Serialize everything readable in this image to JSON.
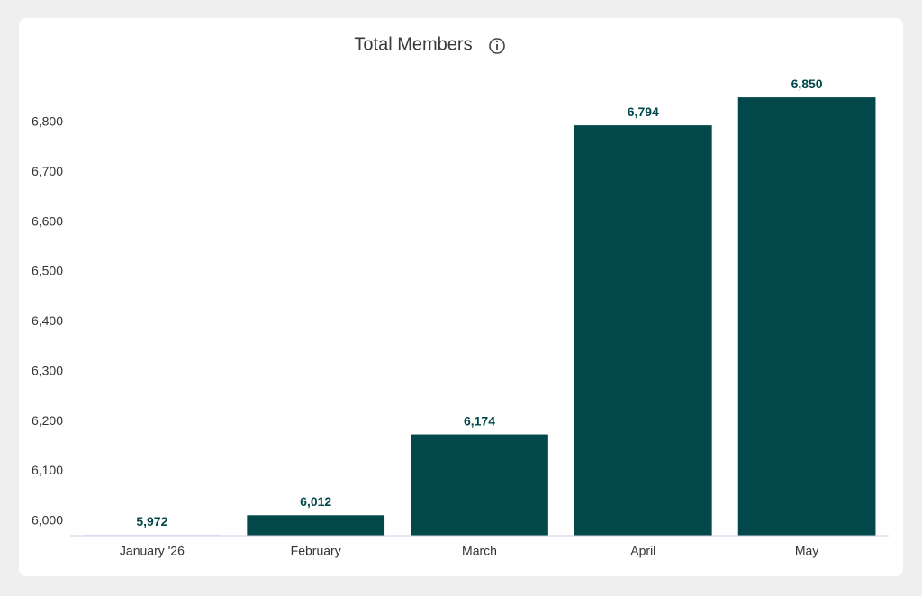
{
  "chart_data": {
    "type": "bar",
    "title": "Total Members",
    "categories": [
      "January '26",
      "February",
      "March",
      "April",
      "May"
    ],
    "values": [
      5972,
      6012,
      6174,
      6794,
      6850
    ],
    "value_labels": [
      "5,972",
      "6,012",
      "6,174",
      "6,794",
      "6,850"
    ],
    "color": "#02484a",
    "ylim": [
      5971,
      6900
    ],
    "yticks": [
      {
        "value": 6000,
        "label": "6,000"
      },
      {
        "value": 6100,
        "label": "6,100"
      },
      {
        "value": 6200,
        "label": "6,200"
      },
      {
        "value": 6300,
        "label": "6,300"
      },
      {
        "value": 6400,
        "label": "6,400"
      },
      {
        "value": 6500,
        "label": "6,500"
      },
      {
        "value": 6600,
        "label": "6,600"
      },
      {
        "value": 6700,
        "label": "6,700"
      },
      {
        "value": 6800,
        "label": "6,800"
      }
    ],
    "grid": false
  }
}
